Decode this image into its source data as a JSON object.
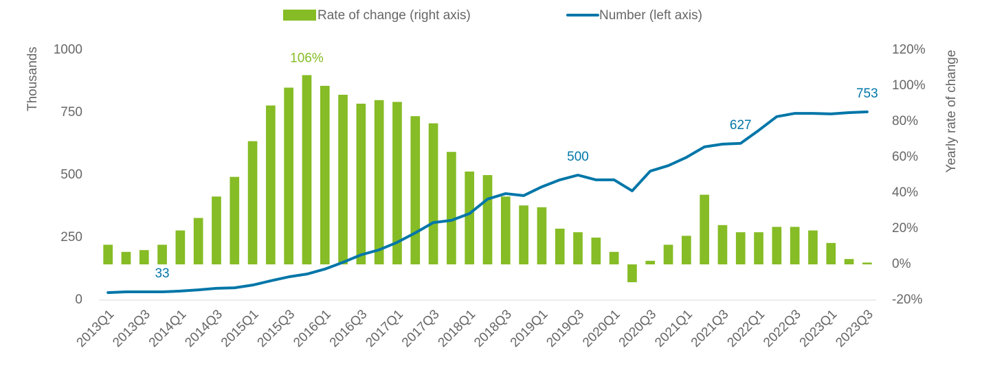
{
  "chart_data": {
    "type": "bar_line",
    "categories": [
      "2013Q1",
      null,
      "2013Q3",
      null,
      "2014Q1",
      null,
      "2014Q3",
      null,
      "2015Q1",
      null,
      "2015Q3",
      null,
      "2016Q1",
      null,
      "2016Q3",
      null,
      "2017Q1",
      null,
      "2017Q3",
      null,
      "2018Q1",
      null,
      "2018Q3",
      null,
      "2019Q1",
      null,
      "2019Q3",
      null,
      "2020Q1",
      null,
      "2020Q3",
      null,
      "2021Q1",
      null,
      "2021Q3",
      null,
      "2022Q1",
      null,
      "2022Q3",
      null,
      "2023Q1",
      null,
      "2023Q3"
    ],
    "series": [
      {
        "name": "Rate of change (right axis)",
        "type": "bar",
        "axis": "y2",
        "color": "#86bc25",
        "values": [
          11,
          7,
          8,
          11,
          19,
          26,
          38,
          49,
          69,
          89,
          99,
          106,
          100,
          95,
          90,
          92,
          91,
          83,
          79,
          63,
          52,
          50,
          38,
          33,
          32,
          20,
          18,
          15,
          7,
          -10,
          2,
          11,
          16,
          39,
          22,
          18,
          18,
          21,
          21,
          19,
          12,
          3,
          1
        ],
        "value_labels": [
          null,
          null,
          null,
          null,
          null,
          null,
          null,
          null,
          null,
          null,
          null,
          "106%",
          null,
          null,
          null,
          null,
          null,
          null,
          null,
          null,
          null,
          null,
          null,
          null,
          null,
          null,
          null,
          null,
          null,
          null,
          null,
          null,
          null,
          null,
          null,
          null,
          null,
          null,
          null,
          null,
          null,
          null,
          null
        ]
      },
      {
        "name": "Number (left axis)",
        "type": "line",
        "axis": "y",
        "color": "#0076a8",
        "values": [
          30,
          33,
          33,
          33,
          36,
          41,
          47,
          49,
          60,
          77,
          93,
          104,
          124,
          151,
          181,
          201,
          231,
          269,
          310,
          319,
          346,
          404,
          426,
          418,
          453,
          481,
          500,
          481,
          481,
          437,
          516,
          538,
          571,
          613,
          624,
          627,
          679,
          734,
          747,
          747,
          745,
          750,
          753
        ],
        "value_labels": [
          null,
          null,
          null,
          "33",
          null,
          null,
          null,
          null,
          null,
          null,
          null,
          null,
          null,
          null,
          null,
          null,
          null,
          null,
          null,
          null,
          null,
          null,
          null,
          null,
          null,
          null,
          "500",
          null,
          null,
          null,
          null,
          null,
          null,
          null,
          null,
          "627",
          null,
          null,
          null,
          null,
          null,
          null,
          "753"
        ]
      }
    ],
    "ylabel": "Thousands",
    "y2label": "Yearly rate of change",
    "ylim": [
      0,
      1000
    ],
    "yticks": [
      0,
      250,
      500,
      750,
      1000
    ],
    "y2lim": [
      -20,
      120
    ],
    "y2ticks": [
      {
        "value": -20,
        "label": "-20%"
      },
      {
        "value": 0,
        "label": "0%"
      },
      {
        "value": 20,
        "label": "20%"
      },
      {
        "value": 40,
        "label": "40%"
      },
      {
        "value": 60,
        "label": "60%"
      },
      {
        "value": 80,
        "label": "80%"
      },
      {
        "value": 100,
        "label": "100%"
      },
      {
        "value": 120,
        "label": "120%"
      }
    ],
    "legend": "top"
  }
}
